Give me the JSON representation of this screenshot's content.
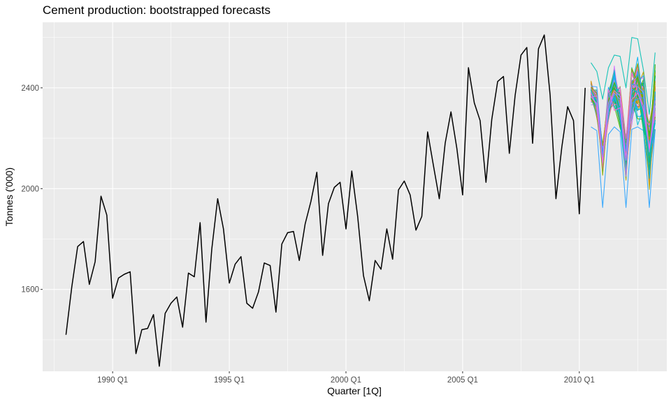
{
  "chart_data": {
    "type": "line",
    "title": "Cement production: bootstrapped forecasts",
    "xlabel": "Quarter [1Q]",
    "ylabel": "Tonnes ('000)",
    "x_ticks": [
      "1990 Q1",
      "1995 Q1",
      "2000 Q1",
      "2005 Q1",
      "2010 Q1"
    ],
    "x_tick_values": [
      1990.0,
      1995.0,
      2000.0,
      2005.0,
      2010.0
    ],
    "y_ticks": [
      1600,
      2000,
      2400
    ],
    "xlim": [
      1987.0,
      2013.75
    ],
    "ylim": [
      1275,
      2660
    ],
    "grid": true,
    "panel_background": "#EBEBEB",
    "grid_color": "#FFFFFF",
    "history_color": "#000000",
    "history": {
      "start": "1988 Q1",
      "values": [
        1420,
        1610,
        1770,
        1790,
        1620,
        1710,
        1970,
        1895,
        1565,
        1645,
        1660,
        1670,
        1345,
        1440,
        1445,
        1500,
        1295,
        1505,
        1545,
        1570,
        1450,
        1665,
        1650,
        1865,
        1470,
        1760,
        1960,
        1840,
        1625,
        1700,
        1730,
        1545,
        1525,
        1590,
        1705,
        1695,
        1510,
        1780,
        1825,
        1830,
        1715,
        1860,
        1950,
        2065,
        1735,
        1940,
        2005,
        2025,
        1840,
        2070,
        1890,
        1655,
        1555,
        1715,
        1680,
        1840,
        1720,
        1995,
        2030,
        1975,
        1835,
        1890,
        2225,
        2090,
        1960,
        2180,
        2305,
        2160,
        1975,
        2480,
        2340,
        2270,
        2025,
        2275,
        2425,
        2445,
        2140,
        2370,
        2530,
        2560,
        2180,
        2555,
        2610,
        2370,
        1960,
        2165,
        2325,
        2270,
        1900,
        2400
      ]
    },
    "forecast": {
      "start": "2010 Q3",
      "quarters": [
        "2010 Q3",
        "2010 Q4",
        "2011 Q1",
        "2011 Q2",
        "2011 Q3",
        "2011 Q4",
        "2012 Q1",
        "2012 Q2",
        "2012 Q3",
        "2012 Q4",
        "2013 Q1",
        "2013 Q2"
      ],
      "series_count": 100,
      "median_path": [
        2380,
        2340,
        2120,
        2340,
        2390,
        2320,
        2130,
        2370,
        2400,
        2330,
        2140,
        2360
      ],
      "visible_envelope_low": [
        2245,
        2230,
        1925,
        2215,
        2245,
        2225,
        1925,
        2235,
        2245,
        2230,
        1925,
        2235
      ],
      "visible_envelope_high": [
        2500,
        2465,
        2355,
        2480,
        2530,
        2525,
        2400,
        2600,
        2595,
        2470,
        2295,
        2540
      ],
      "palette": [
        "#F8766D",
        "#E7851E",
        "#D09400",
        "#B2A100",
        "#89AC00",
        "#45B500",
        "#00BC51",
        "#00C087",
        "#00C0B2",
        "#00BCD6",
        "#00B3F2",
        "#29A3FF",
        "#9C8DFF",
        "#D277FF",
        "#F166E8",
        "#FF61C7",
        "#FF6A98"
      ]
    }
  }
}
